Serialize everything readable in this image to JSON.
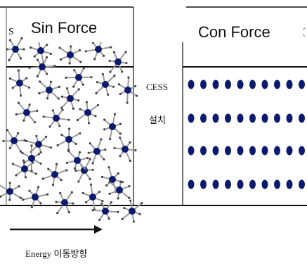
{
  "labels": {
    "sin_force": "Sin Force",
    "con_force": "Con Force",
    "cess": "CESS",
    "cess_sub": "설치",
    "energy": "Energy 이동방향",
    "left_fragment": "S",
    "right_fragment": "("
  },
  "colors": {
    "molecule": "#0b1a6e",
    "bond": "#9a9a9a",
    "line": "#111111"
  },
  "con_grid": {
    "rows": 4,
    "cols": 10
  },
  "sin_molecule_count": 34
}
